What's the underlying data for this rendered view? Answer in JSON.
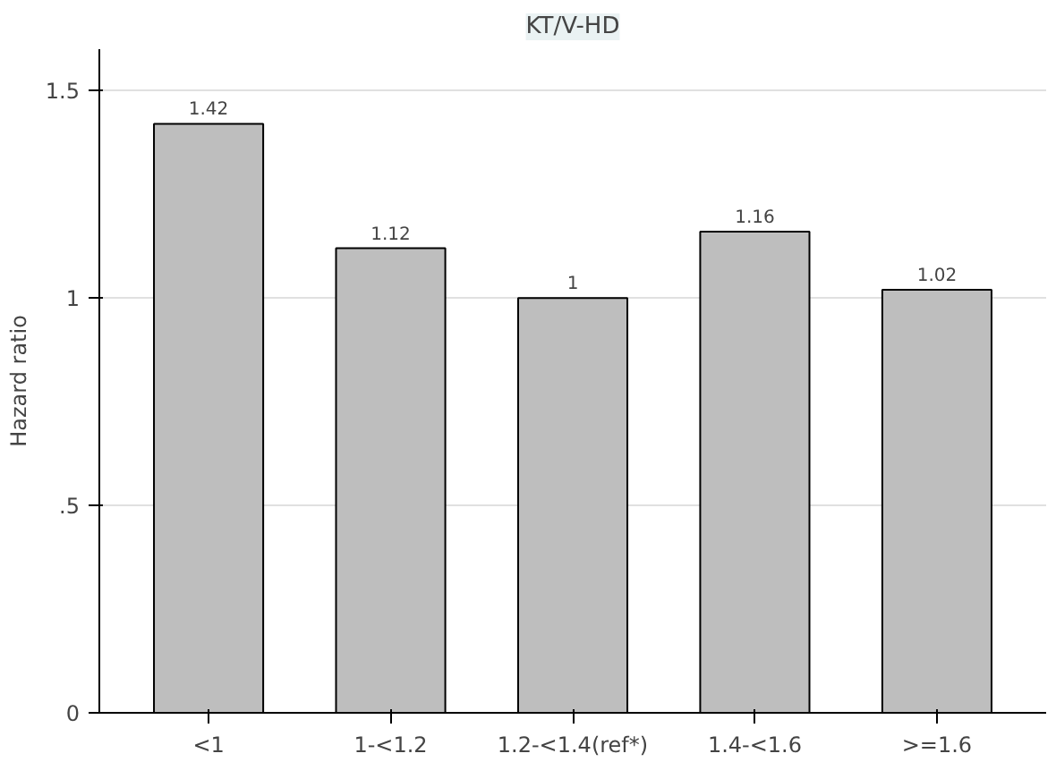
{
  "chart_data": {
    "type": "bar",
    "title": "KT/V-HD",
    "ylabel": "Hazard ratio",
    "categories": [
      "<1",
      "1-<1.2",
      "1.2-<1.4(ref*)",
      "1.4-<1.6",
      ">=1.6"
    ],
    "values": [
      1.42,
      1.12,
      1,
      1.16,
      1.02
    ],
    "color": "#bebebe",
    "value_labels": [
      "1.42",
      "1.12",
      "1",
      "1.16",
      "1.02"
    ],
    "ylim": [
      0,
      1.6
    ],
    "yticks": [
      0,
      {
        "value": 0.5,
        "label": ".5"
      },
      1,
      1.5
    ],
    "grid": "y"
  }
}
